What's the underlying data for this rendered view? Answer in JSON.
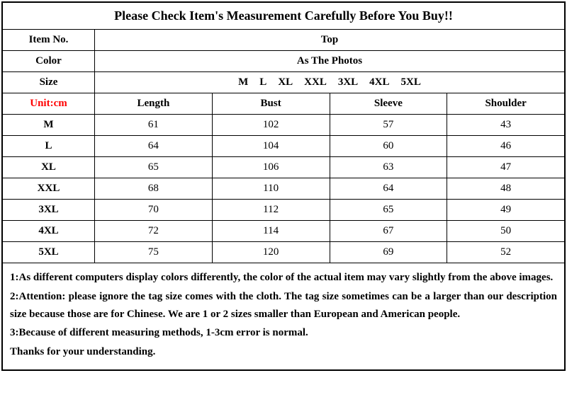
{
  "title": "Please Check Item's Measurement Carefully Before You Buy!!",
  "info": {
    "item_no_label": "Item No.",
    "item_no_value": "Top",
    "color_label": "Color",
    "color_value": "As The Photos",
    "size_label": "Size",
    "sizes": [
      "M",
      "L",
      "XL",
      "XXL",
      "3XL",
      "4XL",
      "5XL"
    ],
    "unit_label": "Unit:cm"
  },
  "columns": {
    "length": "Length",
    "bust": "Bust",
    "sleeve": "Sleeve",
    "shoulder": "Shoulder"
  },
  "rows": [
    {
      "size": "M",
      "length": "61",
      "bust": "102",
      "sleeve": "57",
      "shoulder": "43"
    },
    {
      "size": "L",
      "length": "64",
      "bust": "104",
      "sleeve": "60",
      "shoulder": "46"
    },
    {
      "size": "XL",
      "length": "65",
      "bust": "106",
      "sleeve": "63",
      "shoulder": "47"
    },
    {
      "size": "XXL",
      "length": "68",
      "bust": "110",
      "sleeve": "64",
      "shoulder": "48"
    },
    {
      "size": "3XL",
      "length": "70",
      "bust": "112",
      "sleeve": "65",
      "shoulder": "49"
    },
    {
      "size": "4XL",
      "length": "72",
      "bust": "114",
      "sleeve": "67",
      "shoulder": "50"
    },
    {
      "size": "5XL",
      "length": "75",
      "bust": "120",
      "sleeve": "69",
      "shoulder": "52"
    }
  ],
  "notes": {
    "n1": "1:As different computers display colors differently, the color of the actual item may vary slightly from the above images.",
    "n2": "2:Attention: please ignore the tag size comes with the cloth. The tag size sometimes can be a larger than our description size because those are for Chinese. We are 1 or 2 sizes smaller than European and American people.",
    "n3": "3:Because of different measuring methods, 1-3cm error is normal.",
    "thanks": "Thanks for your understanding."
  },
  "colors": {
    "unit_label": "#ff0000",
    "border": "#000000",
    "text": "#000000",
    "background": "#ffffff"
  }
}
